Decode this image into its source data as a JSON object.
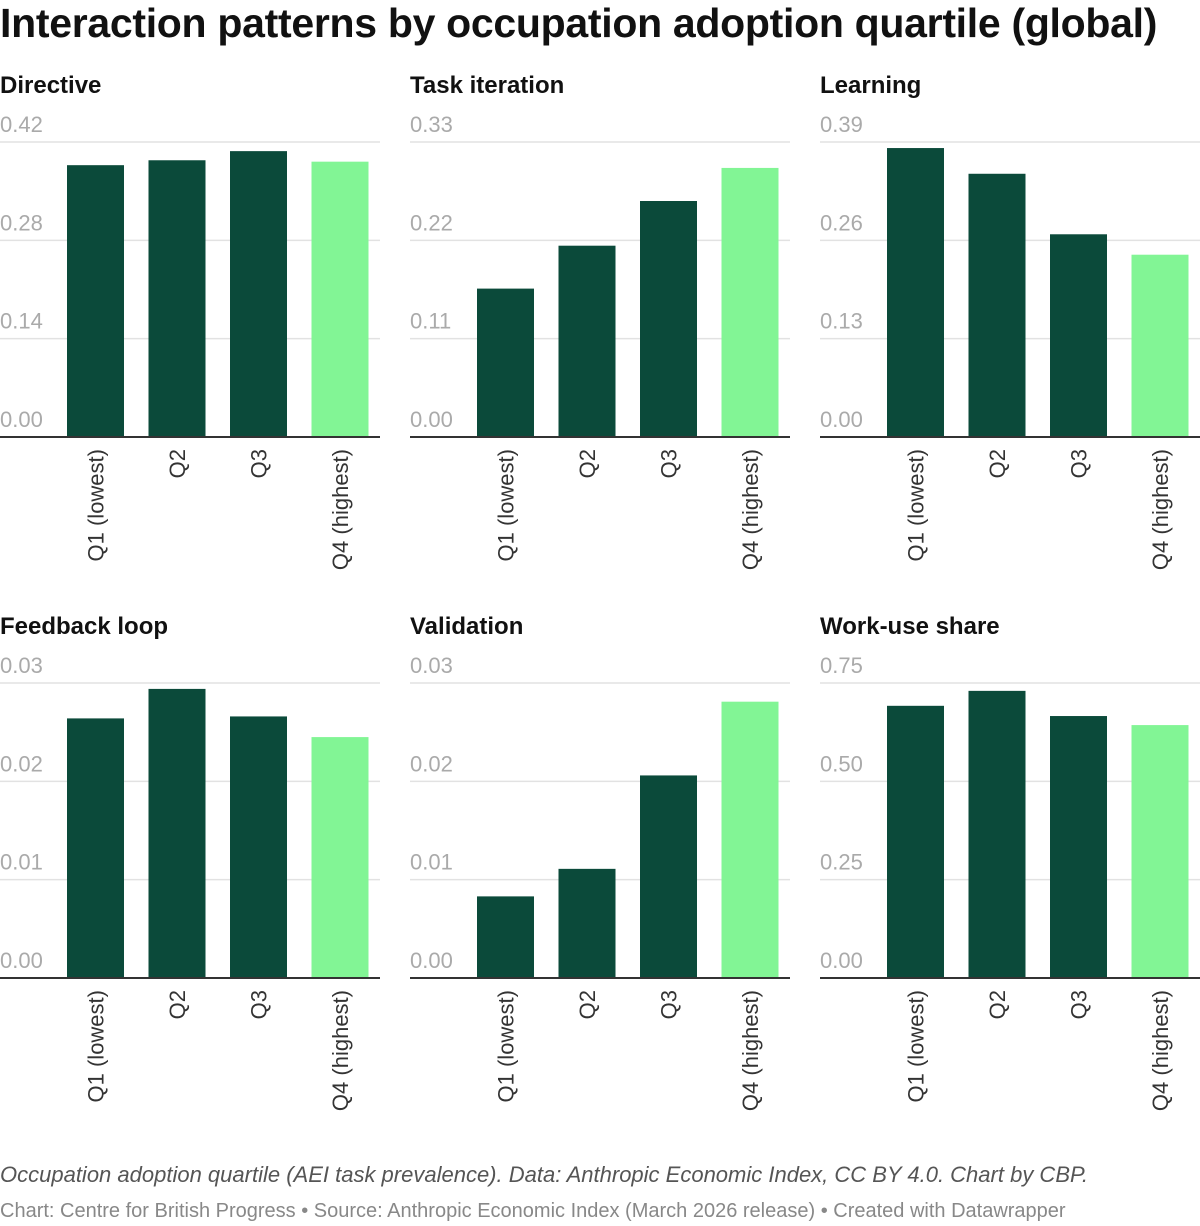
{
  "title": "Interaction patterns by occupation adoption quartile (global)",
  "notes": "Occupation adoption quartile (AEI task prevalence). Data: Anthropic Economic Index, CC BY 4.0. Chart by CBP.",
  "source": "Chart: Centre for British Progress • Source: Anthropic Economic Index (March 2026 release) • Created with Datawrapper",
  "colors": {
    "bar": "#0b4a3a",
    "highlight": "#82f595",
    "grid": "#e2e2e2",
    "tick_label": "#aaaaaa",
    "axis": "#333333"
  },
  "chart_data": [
    {
      "type": "bar",
      "title": "Directive",
      "categories": [
        "Q1 (lowest)",
        "Q2",
        "Q3",
        "Q4 (highest)"
      ],
      "values": [
        0.387,
        0.394,
        0.407,
        0.392
      ],
      "ylim": [
        0,
        0.42
      ],
      "yticks": [
        "0.00",
        "0.14",
        "0.28",
        "0.42"
      ],
      "highlight": "Q4 (highest)",
      "grid": true
    },
    {
      "type": "bar",
      "title": "Task iteration",
      "categories": [
        "Q1 (lowest)",
        "Q2",
        "Q3",
        "Q4 (highest)"
      ],
      "values": [
        0.166,
        0.214,
        0.264,
        0.301
      ],
      "ylim": [
        0,
        0.33
      ],
      "yticks": [
        "0.00",
        "0.11",
        "0.22",
        "0.33"
      ],
      "highlight": "Q4 (highest)",
      "grid": true
    },
    {
      "type": "bar",
      "title": "Learning",
      "categories": [
        "Q1 (lowest)",
        "Q2",
        "Q3",
        "Q4 (highest)"
      ],
      "values": [
        0.382,
        0.348,
        0.268,
        0.241
      ],
      "ylim": [
        0,
        0.39
      ],
      "yticks": [
        "0.00",
        "0.13",
        "0.26",
        "0.39"
      ],
      "highlight": "Q4 (highest)",
      "grid": true
    },
    {
      "type": "bar",
      "title": "Feedback loop",
      "categories": [
        "Q1 (lowest)",
        "Q2",
        "Q3",
        "Q4 (highest)"
      ],
      "values": [
        0.0264,
        0.0294,
        0.0266,
        0.0245
      ],
      "ylim": [
        0,
        0.03
      ],
      "yticks": [
        "0.00",
        "0.01",
        "0.02",
        "0.03"
      ],
      "highlight": "Q4 (highest)",
      "grid": true
    },
    {
      "type": "bar",
      "title": "Validation",
      "categories": [
        "Q1 (lowest)",
        "Q2",
        "Q3",
        "Q4 (highest)"
      ],
      "values": [
        0.0083,
        0.0111,
        0.0206,
        0.0281
      ],
      "ylim": [
        0,
        0.03
      ],
      "yticks": [
        "0.00",
        "0.01",
        "0.02",
        "0.03"
      ],
      "highlight": "Q4 (highest)",
      "grid": true
    },
    {
      "type": "bar",
      "title": "Work-use share",
      "categories": [
        "Q1 (lowest)",
        "Q2",
        "Q3",
        "Q4 (highest)"
      ],
      "values": [
        0.692,
        0.73,
        0.666,
        0.643
      ],
      "ylim": [
        0,
        0.75
      ],
      "yticks": [
        "0.00",
        "0.25",
        "0.50",
        "0.75"
      ],
      "highlight": "Q4 (highest)",
      "grid": true
    }
  ]
}
